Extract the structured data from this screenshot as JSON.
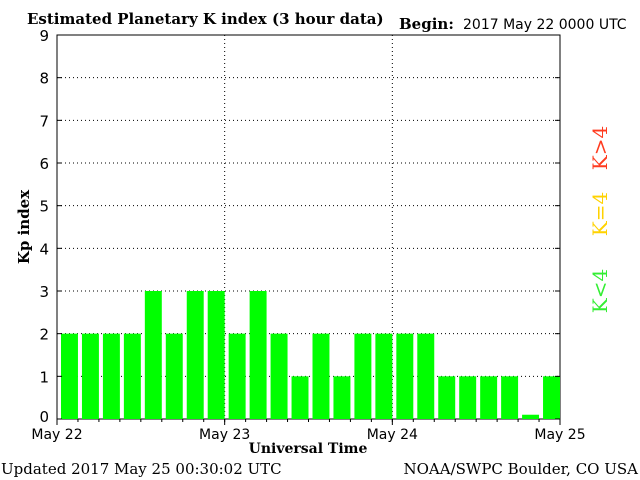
{
  "header": {
    "title": "Estimated Planetary K index (3 hour data)",
    "begin_label": "Begin:",
    "begin_value": "2017 May 22 0000 UTC"
  },
  "footer": {
    "updated": "Updated 2017 May 25 00:30:02 UTC",
    "source": "NOAA/SWPC Boulder, CO USA"
  },
  "legend": [
    {
      "label": "K>4",
      "color": "#ff3b1f"
    },
    {
      "label": "K=4",
      "color": "#ffd200"
    },
    {
      "label": "K<4",
      "color": "#33ee33"
    }
  ],
  "chart_data": {
    "type": "bar",
    "title": "Estimated Planetary K index (3 hour data)",
    "xlabel": "Universal Time",
    "ylabel": "Kp index",
    "ylim": [
      0,
      9
    ],
    "yticks": [
      "0",
      "1",
      "2",
      "3",
      "4",
      "5",
      "6",
      "7",
      "8",
      "9"
    ],
    "xticks": [
      "May 22",
      "May 23",
      "May 24",
      "May 25"
    ],
    "grid": true,
    "bar_color": "#00ff00",
    "values": [
      2,
      2,
      2,
      2,
      3,
      2,
      3,
      3,
      2,
      3,
      2,
      1,
      2,
      1,
      2,
      2,
      2,
      2,
      1,
      1,
      1,
      1,
      0.1,
      1
    ]
  }
}
